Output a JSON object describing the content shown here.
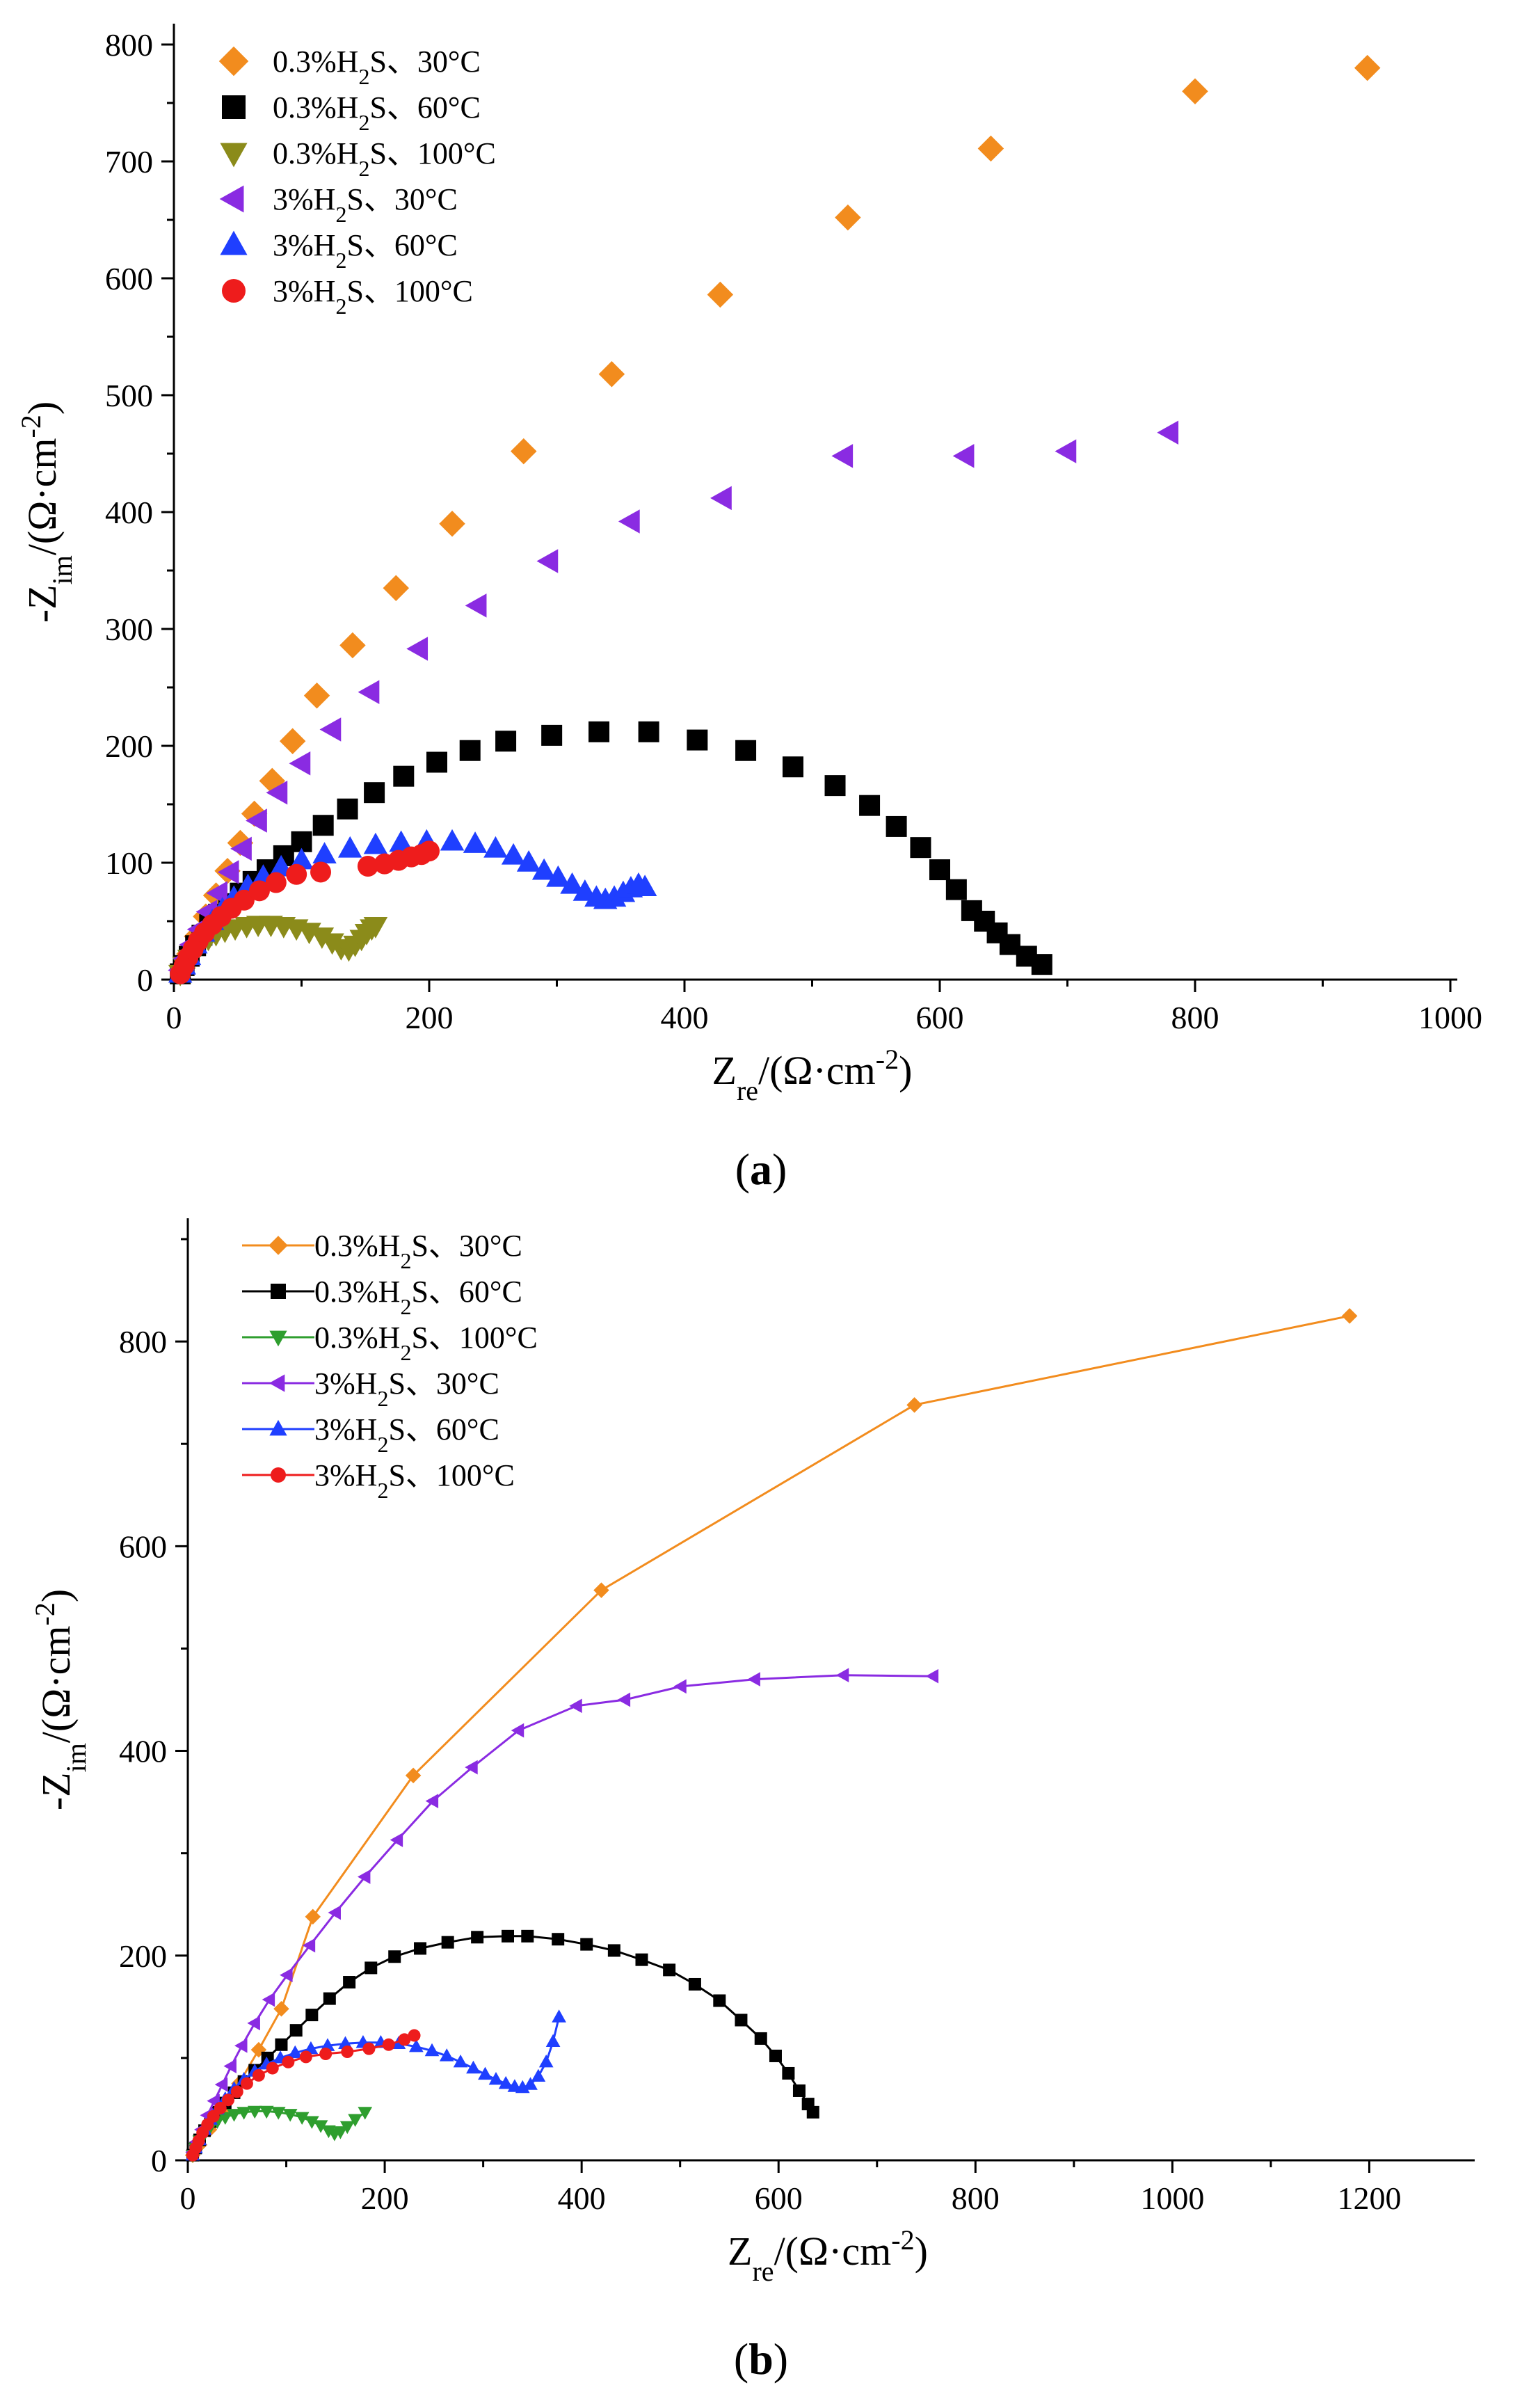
{
  "figure": {
    "panels": [
      {
        "label_open": "(",
        "label_letter": "a",
        "label_close": ")"
      },
      {
        "label_open": "(",
        "label_letter": "b",
        "label_close": ")"
      }
    ]
  },
  "chart_data": [
    {
      "type": "scatter",
      "panel": "a",
      "title": "",
      "xlabel": "Zre/(Ω·cm-2)",
      "ylabel": "-Zim/(Ω·cm-2)",
      "xlabel_parts": {
        "main": "Z",
        "sub": "re",
        "unit_pre": "/(Ω·cm",
        "sup": "-2",
        "unit_post": ")"
      },
      "ylabel_parts": {
        "main": "-Z",
        "sub": "im",
        "unit_pre": "/(Ω·cm",
        "sup": "-2",
        "unit_post": ")"
      },
      "xlim": [
        0,
        1000
      ],
      "ylim": [
        0,
        800
      ],
      "xticks": [
        0,
        200,
        400,
        600,
        800,
        1000
      ],
      "yticks": [
        0,
        100,
        200,
        300,
        400,
        500,
        600,
        700,
        800
      ],
      "grid": false,
      "legend_position": "top-left",
      "series": [
        {
          "name": "0.3%H2S、30°C",
          "legend": {
            "pre": "0.3%H",
            "sub": "2",
            "post": "S、30°C"
          },
          "color": "#F28C1E",
          "marker": "diamond",
          "x": [
            7,
            12,
            18,
            25,
            33,
            42,
            52,
            63,
            77,
            93,
            112,
            140,
            174,
            218,
            274,
            343,
            428,
            528,
            640,
            800,
            935
          ],
          "y": [
            10,
            22,
            37,
            54,
            72,
            93,
            117,
            142,
            170,
            204,
            243,
            286,
            335,
            390,
            452,
            518,
            586,
            652,
            711,
            760,
            780
          ]
        },
        {
          "name": "0.3%H2S、60°C",
          "legend": {
            "pre": "0.3%H",
            "sub": "2",
            "post": "S、60°C"
          },
          "color": "#000000",
          "marker": "square",
          "x": [
            5,
            8,
            12,
            17,
            22,
            28,
            35,
            43,
            52,
            62,
            73,
            86,
            100,
            117,
            136,
            157,
            180,
            206,
            232,
            260,
            296,
            333,
            372,
            410,
            448,
            485,
            518,
            545,
            566,
            585,
            600,
            613,
            625,
            635,
            645,
            655,
            668,
            680
          ],
          "y": [
            5,
            12,
            20,
            29,
            38,
            47,
            56,
            65,
            74,
            84,
            94,
            106,
            118,
            132,
            146,
            160,
            174,
            186,
            196,
            204,
            209,
            212,
            212,
            205,
            196,
            182,
            166,
            149,
            131,
            113,
            94,
            77,
            59,
            50,
            40,
            30,
            20,
            13
          ]
        },
        {
          "name": "0.3%H2S、100°C",
          "legend": {
            "pre": "0.3%H",
            "sub": "2",
            "post": "S、100°C"
          },
          "color": "#8B8B1A",
          "marker": "triangle-down",
          "x": [
            5,
            8,
            12,
            16,
            21,
            27,
            33,
            40,
            48,
            57,
            66,
            76,
            86,
            96,
            106,
            116,
            124,
            131,
            137,
            142,
            147,
            151,
            155,
            158
          ],
          "y": [
            5,
            12,
            18,
            24,
            30,
            35,
            39,
            42,
            44,
            46,
            47,
            47,
            46,
            44,
            41,
            37,
            32,
            27,
            26,
            30,
            35,
            40,
            44,
            46
          ]
        },
        {
          "name": "3%H2S、30°C",
          "legend": {
            "pre": "3%H",
            "sub": "2",
            "post": "S、30°C"
          },
          "color": "#8A2BE2",
          "marker": "triangle-left",
          "x": [
            5,
            9,
            14,
            20,
            27,
            35,
            44,
            54,
            66,
            82,
            100,
            124,
            154,
            192,
            238,
            294,
            358,
            430,
            525,
            620,
            700,
            780
          ],
          "y": [
            8,
            18,
            30,
            43,
            58,
            74,
            92,
            112,
            136,
            160,
            185,
            214,
            246,
            283,
            320,
            358,
            392,
            412,
            448,
            448,
            452,
            468
          ]
        },
        {
          "name": "3%H2S、60°C",
          "legend": {
            "pre": "3%H",
            "sub": "2",
            "post": "S、60°C"
          },
          "color": "#1F3FFF",
          "marker": "triangle-up",
          "x": [
            5,
            8,
            12,
            17,
            23,
            30,
            38,
            47,
            58,
            70,
            84,
            100,
            118,
            138,
            158,
            178,
            198,
            218,
            236,
            252,
            266,
            278,
            290,
            301,
            312,
            322,
            331,
            338,
            345,
            352,
            358,
            364,
            369
          ],
          "y": [
            5,
            12,
            20,
            30,
            40,
            50,
            60,
            70,
            80,
            88,
            96,
            102,
            107,
            112,
            115,
            117,
            118,
            118,
            116,
            112,
            106,
            100,
            93,
            87,
            81,
            75,
            70,
            68,
            70,
            74,
            78,
            81,
            79
          ]
        },
        {
          "name": "3%H2S、100°C",
          "legend": {
            "pre": "3%H",
            "sub": "2",
            "post": "S、100°C"
          },
          "color": "#EE1C1C",
          "marker": "circle",
          "x": [
            5,
            8,
            11,
            15,
            19,
            24,
            30,
            37,
            45,
            55,
            67,
            80,
            96,
            115,
            152,
            165,
            176,
            186,
            194,
            200
          ],
          "y": [
            5,
            12,
            19,
            26,
            33,
            40,
            47,
            54,
            61,
            68,
            76,
            83,
            90,
            92,
            97,
            99,
            102,
            105,
            107,
            110
          ]
        }
      ]
    },
    {
      "type": "line",
      "panel": "b",
      "title": "",
      "xlabel": "Zre/(Ω·cm-2)",
      "ylabel": "-Zim/(Ω·cm-2)",
      "xlabel_parts": {
        "main": "Z",
        "sub": "re",
        "unit_pre": "/(Ω·cm",
        "sup": "-2",
        "unit_post": ")"
      },
      "ylabel_parts": {
        "main": "-Z",
        "sub": "im",
        "unit_pre": "/(Ω·cm",
        "sup": "-2",
        "unit_post": ")"
      },
      "xlim": [
        0,
        1300
      ],
      "ylim": [
        0,
        900
      ],
      "xticks": [
        0,
        200,
        400,
        600,
        800,
        1000,
        1200
      ],
      "yticks": [
        0,
        200,
        400,
        600,
        800
      ],
      "grid": false,
      "legend_position": "top-left",
      "series": [
        {
          "name": "0.3%H2S、30°C",
          "legend": {
            "pre": "0.3%H",
            "sub": "2",
            "post": "S、30°C"
          },
          "color": "#F28C1E",
          "marker": "diamond",
          "x": [
            5,
            12,
            22,
            36,
            52,
            72,
            95,
            127,
            229,
            420,
            738,
            1180
          ],
          "y": [
            5,
            15,
            30,
            50,
            75,
            108,
            148,
            238,
            376,
            557,
            738,
            825
          ]
        },
        {
          "name": "0.3%H2S、60°C",
          "legend": {
            "pre": "0.3%H",
            "sub": "2",
            "post": "S、60°C"
          },
          "color": "#000000",
          "marker": "square",
          "x": [
            5,
            8,
            12,
            17,
            23,
            30,
            38,
            47,
            57,
            68,
            81,
            95,
            110,
            126,
            144,
            164,
            186,
            210,
            236,
            264,
            294,
            325,
            345,
            376,
            405,
            433,
            461,
            489,
            515,
            540,
            562,
            582,
            597,
            610,
            621,
            630,
            635
          ],
          "y": [
            5,
            12,
            20,
            29,
            38,
            47,
            56,
            66,
            77,
            88,
            100,
            113,
            127,
            142,
            158,
            174,
            188,
            199,
            207,
            213,
            218,
            219,
            219,
            216,
            211,
            205,
            196,
            186,
            172,
            156,
            137,
            119,
            102,
            85,
            68,
            55,
            47
          ]
        },
        {
          "name": "0.3%H2S、100°C",
          "legend": {
            "pre": "0.3%H",
            "sub": "2",
            "post": "S、100°C"
          },
          "color": "#2E9E2E",
          "marker": "triangle-down",
          "x": [
            5,
            8,
            12,
            17,
            23,
            30,
            38,
            47,
            57,
            68,
            80,
            92,
            104,
            116,
            126,
            135,
            143,
            149,
            155,
            162,
            170,
            180
          ],
          "y": [
            5,
            12,
            19,
            26,
            33,
            38,
            42,
            45,
            47,
            48,
            48,
            47,
            45,
            42,
            38,
            34,
            29,
            26,
            28,
            33,
            40,
            47
          ]
        },
        {
          "name": "3%H2S、30°C",
          "legend": {
            "pre": "3%H",
            "sub": "2",
            "post": "S、30°C"
          },
          "color": "#8A2BE2",
          "marker": "triangle-left",
          "x": [
            5,
            9,
            14,
            20,
            27,
            35,
            44,
            55,
            68,
            83,
            101,
            124,
            150,
            180,
            213,
            249,
            289,
            336,
            395,
            444,
            501,
            576,
            666,
            757
          ],
          "y": [
            8,
            18,
            30,
            44,
            58,
            74,
            92,
            112,
            134,
            157,
            181,
            210,
            242,
            277,
            313,
            351,
            384,
            420,
            444,
            450,
            463,
            470,
            474,
            473
          ]
        },
        {
          "name": "3%H2S、60°C",
          "legend": {
            "pre": "3%H",
            "sub": "2",
            "post": "S、60°C"
          },
          "color": "#1F3FFF",
          "marker": "triangle-up",
          "x": [
            5,
            8,
            12,
            17,
            23,
            30,
            38,
            47,
            57,
            68,
            80,
            94,
            109,
            125,
            142,
            160,
            178,
            196,
            214,
            232,
            248,
            263,
            277,
            290,
            302,
            313,
            323,
            332,
            340,
            348,
            356,
            364,
            371,
            377
          ],
          "y": [
            5,
            12,
            20,
            30,
            40,
            50,
            60,
            70,
            79,
            87,
            94,
            100,
            105,
            109,
            112,
            114,
            115,
            115,
            114,
            111,
            107,
            102,
            96,
            90,
            84,
            79,
            75,
            72,
            71,
            74,
            82,
            96,
            116,
            140
          ]
        },
        {
          "name": "3%H2S、100°C",
          "legend": {
            "pre": "3%H",
            "sub": "2",
            "post": "S、100°C"
          },
          "color": "#EE1C1C",
          "marker": "circle",
          "x": [
            5,
            8,
            11,
            15,
            20,
            26,
            33,
            41,
            50,
            60,
            72,
            86,
            102,
            120,
            140,
            162,
            184,
            204,
            220,
            230
          ],
          "y": [
            5,
            12,
            19,
            27,
            35,
            43,
            51,
            59,
            67,
            75,
            83,
            90,
            96,
            101,
            104,
            106,
            109,
            113,
            118,
            122
          ]
        }
      ]
    }
  ]
}
